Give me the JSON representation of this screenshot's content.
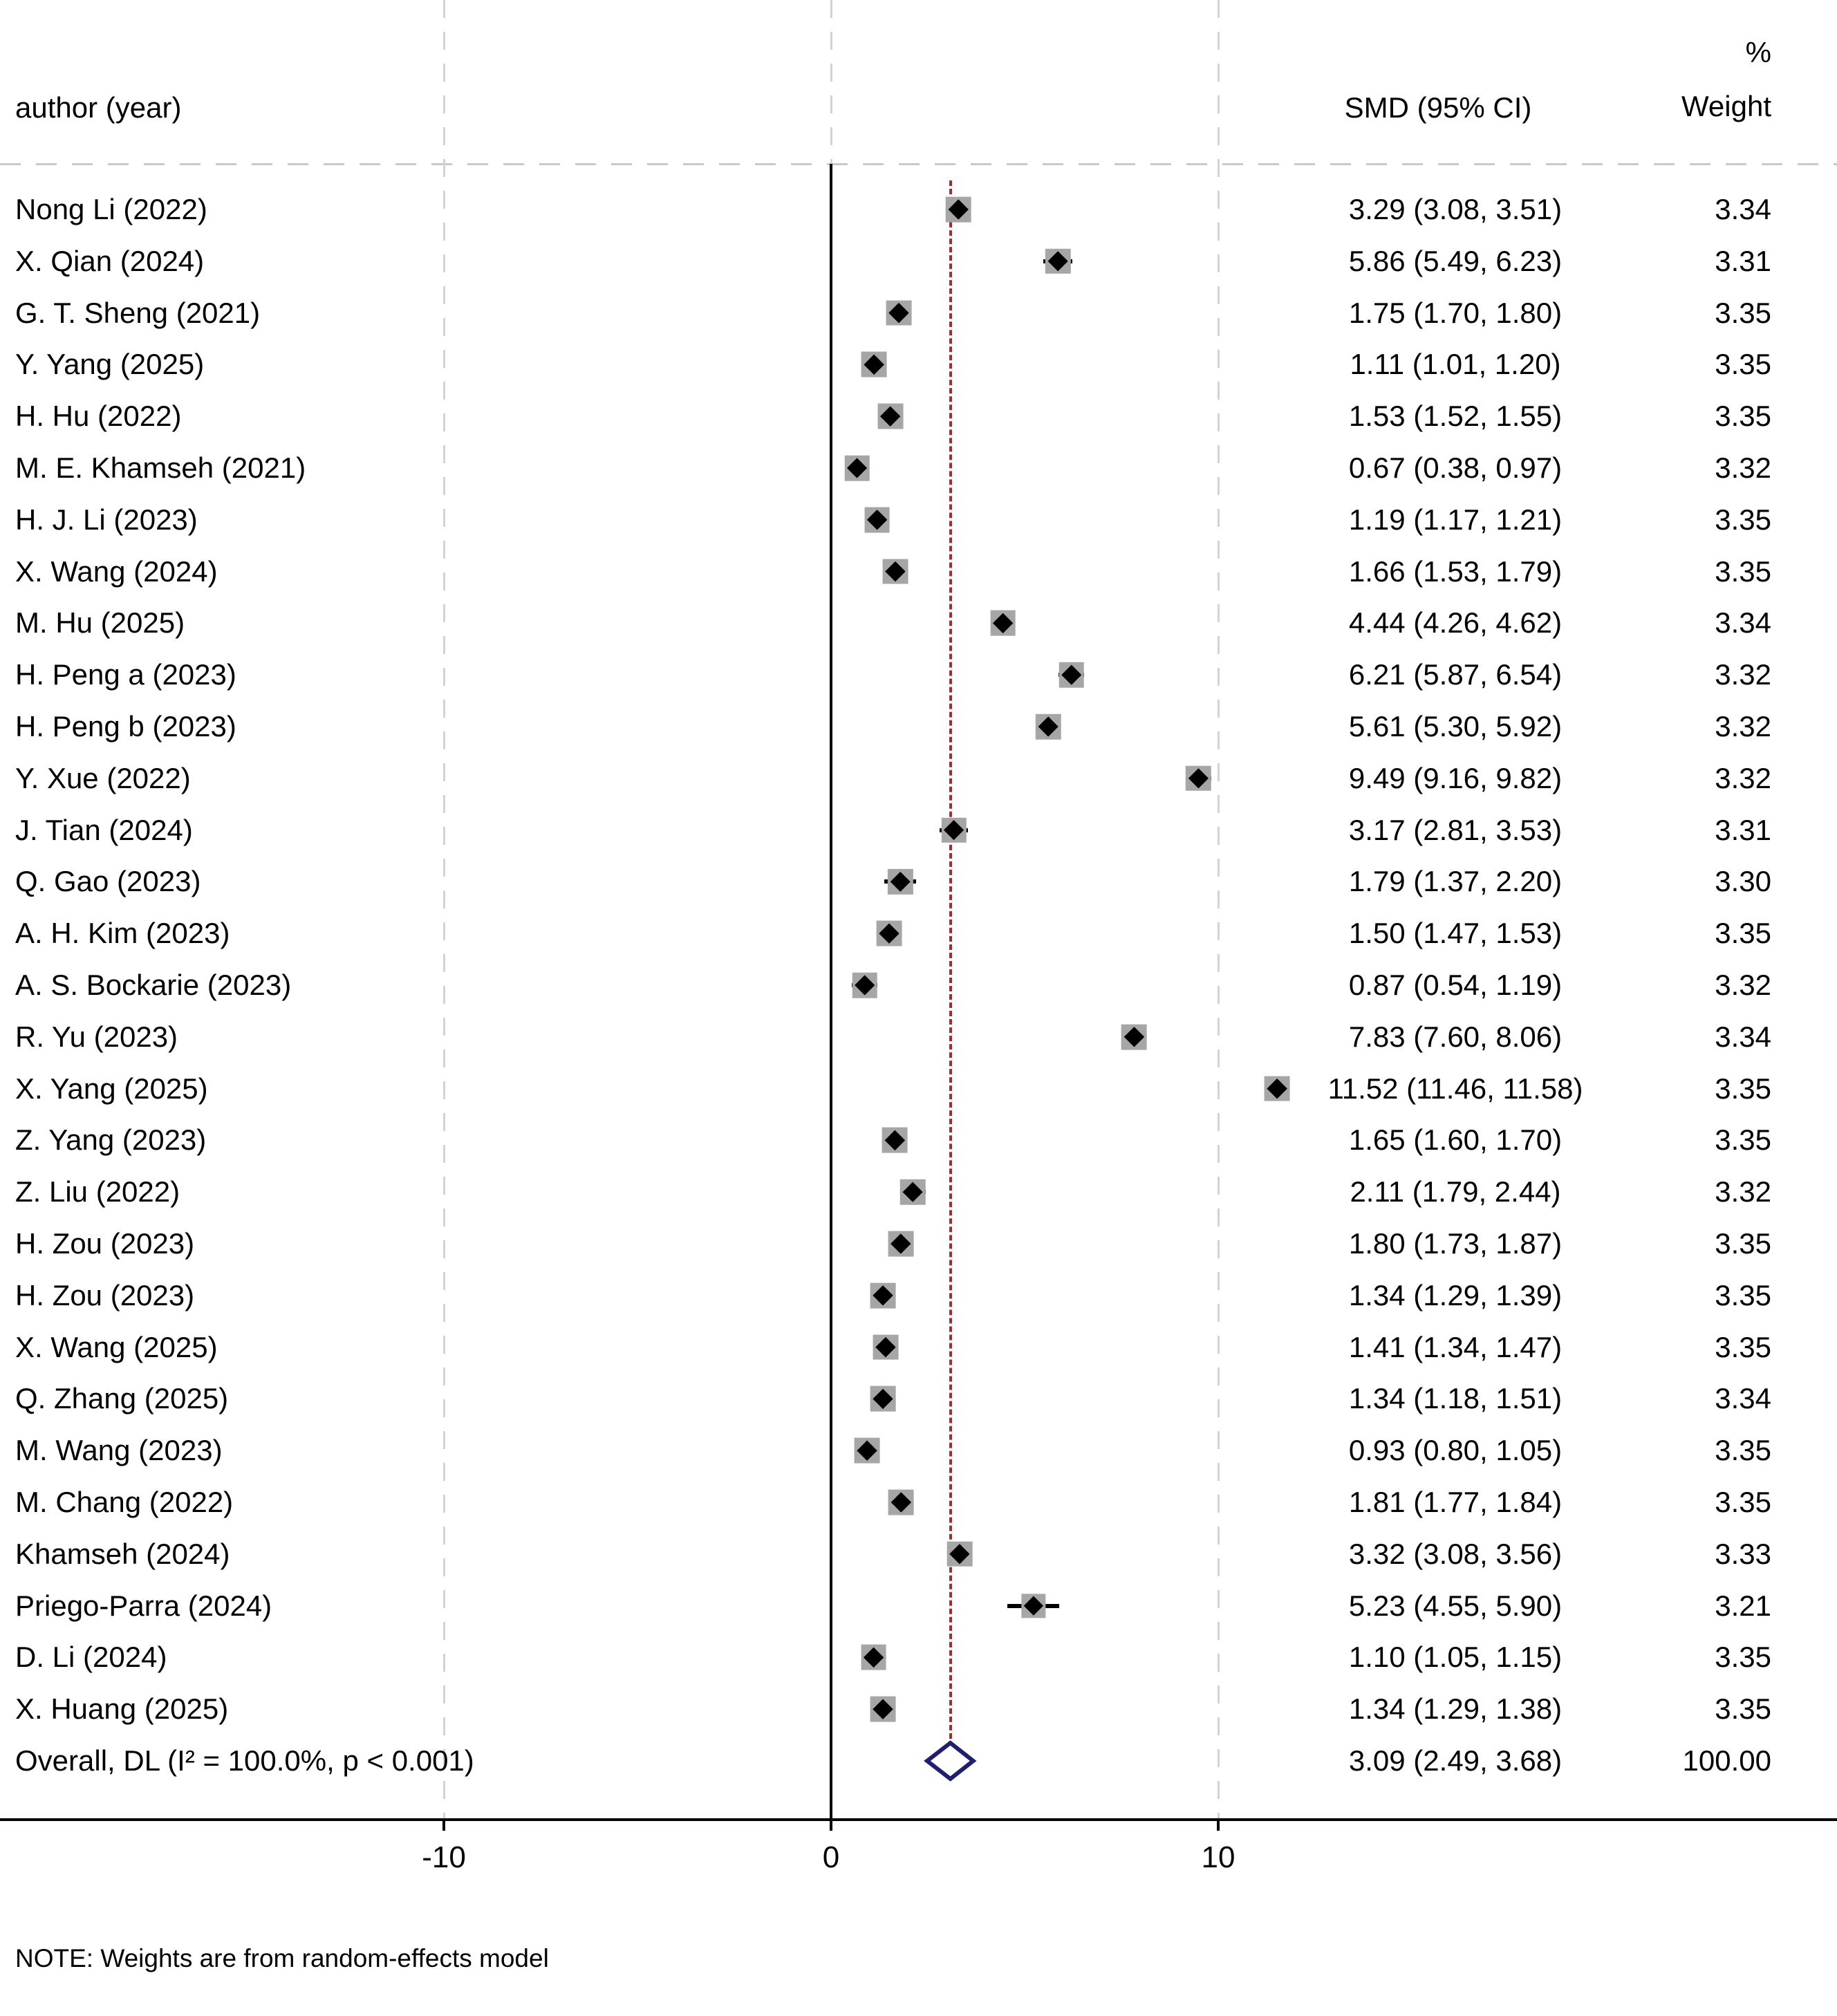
{
  "header": {
    "author": "author (year)",
    "smd": "SMD (95% CI)",
    "weight_pct": "%",
    "weight": "Weight"
  },
  "note": "NOTE: Weights are from random-effects model",
  "chart_data": {
    "type": "forest",
    "title": "",
    "x_axis": {
      "ticks": [
        -10,
        0,
        10
      ],
      "tick_labels": [
        "-10",
        "0",
        "10"
      ],
      "zero_line": 0,
      "reference_line": 3.09,
      "xlim": [
        -13,
        16
      ]
    },
    "colors": {
      "weight_box": "#a6a6a6",
      "marker": "#000000",
      "overall_diamond_stroke": "#1f1f6e",
      "reference_line": "#9c2f2f",
      "gridline": "#d2d2d2"
    },
    "studies": [
      {
        "author": "Nong Li (2022)",
        "value": 3.29,
        "lo": 3.08,
        "hi": 3.51,
        "smd_label": "3.29 (3.08, 3.51)",
        "weight": 3.34,
        "weight_label": "3.34"
      },
      {
        "author": "X. Qian (2024)",
        "value": 5.86,
        "lo": 5.49,
        "hi": 6.23,
        "smd_label": "5.86 (5.49, 6.23)",
        "weight": 3.31,
        "weight_label": "3.31"
      },
      {
        "author": "G. T. Sheng (2021)",
        "value": 1.75,
        "lo": 1.7,
        "hi": 1.8,
        "smd_label": "1.75 (1.70, 1.80)",
        "weight": 3.35,
        "weight_label": "3.35"
      },
      {
        "author": "Y. Yang (2025)",
        "value": 1.11,
        "lo": 1.01,
        "hi": 1.2,
        "smd_label": "1.11 (1.01, 1.20)",
        "weight": 3.35,
        "weight_label": "3.35"
      },
      {
        "author": "H. Hu (2022)",
        "value": 1.53,
        "lo": 1.52,
        "hi": 1.55,
        "smd_label": "1.53 (1.52, 1.55)",
        "weight": 3.35,
        "weight_label": "3.35"
      },
      {
        "author": "M. E. Khamseh (2021)",
        "value": 0.67,
        "lo": 0.38,
        "hi": 0.97,
        "smd_label": "0.67 (0.38, 0.97)",
        "weight": 3.32,
        "weight_label": "3.32"
      },
      {
        "author": "H. J. Li (2023)",
        "value": 1.19,
        "lo": 1.17,
        "hi": 1.21,
        "smd_label": "1.19 (1.17, 1.21)",
        "weight": 3.35,
        "weight_label": "3.35"
      },
      {
        "author": "X. Wang (2024)",
        "value": 1.66,
        "lo": 1.53,
        "hi": 1.79,
        "smd_label": "1.66 (1.53, 1.79)",
        "weight": 3.35,
        "weight_label": "3.35"
      },
      {
        "author": "M. Hu (2025)",
        "value": 4.44,
        "lo": 4.26,
        "hi": 4.62,
        "smd_label": "4.44 (4.26, 4.62)",
        "weight": 3.34,
        "weight_label": "3.34"
      },
      {
        "author": "H. Peng a (2023)",
        "value": 6.21,
        "lo": 5.87,
        "hi": 6.54,
        "smd_label": "6.21 (5.87, 6.54)",
        "weight": 3.32,
        "weight_label": "3.32"
      },
      {
        "author": "H. Peng b (2023)",
        "value": 5.61,
        "lo": 5.3,
        "hi": 5.92,
        "smd_label": "5.61 (5.30, 5.92)",
        "weight": 3.32,
        "weight_label": "3.32"
      },
      {
        "author": "Y. Xue (2022)",
        "value": 9.49,
        "lo": 9.16,
        "hi": 9.82,
        "smd_label": "9.49 (9.16, 9.82)",
        "weight": 3.32,
        "weight_label": "3.32"
      },
      {
        "author": "J. Tian (2024)",
        "value": 3.17,
        "lo": 2.81,
        "hi": 3.53,
        "smd_label": "3.17 (2.81, 3.53)",
        "weight": 3.31,
        "weight_label": "3.31"
      },
      {
        "author": "Q. Gao (2023)",
        "value": 1.79,
        "lo": 1.37,
        "hi": 2.2,
        "smd_label": "1.79 (1.37, 2.20)",
        "weight": 3.3,
        "weight_label": "3.30"
      },
      {
        "author": "A. H. Kim (2023)",
        "value": 1.5,
        "lo": 1.47,
        "hi": 1.53,
        "smd_label": "1.50 (1.47, 1.53)",
        "weight": 3.35,
        "weight_label": "3.35"
      },
      {
        "author": "A. S. Bockarie (2023)",
        "value": 0.87,
        "lo": 0.54,
        "hi": 1.19,
        "smd_label": "0.87 (0.54, 1.19)",
        "weight": 3.32,
        "weight_label": "3.32"
      },
      {
        "author": "R. Yu (2023)",
        "value": 7.83,
        "lo": 7.6,
        "hi": 8.06,
        "smd_label": "7.83 (7.60, 8.06)",
        "weight": 3.34,
        "weight_label": "3.34"
      },
      {
        "author": "X. Yang (2025)",
        "value": 11.52,
        "lo": 11.46,
        "hi": 11.58,
        "smd_label": "11.52 (11.46, 11.58)",
        "weight": 3.35,
        "weight_label": "3.35"
      },
      {
        "author": "Z. Yang (2023)",
        "value": 1.65,
        "lo": 1.6,
        "hi": 1.7,
        "smd_label": "1.65 (1.60, 1.70)",
        "weight": 3.35,
        "weight_label": "3.35"
      },
      {
        "author": "Z. Liu (2022)",
        "value": 2.11,
        "lo": 1.79,
        "hi": 2.44,
        "smd_label": "2.11 (1.79, 2.44)",
        "weight": 3.32,
        "weight_label": "3.32"
      },
      {
        "author": "H. Zou (2023)",
        "value": 1.8,
        "lo": 1.73,
        "hi": 1.87,
        "smd_label": "1.80 (1.73, 1.87)",
        "weight": 3.35,
        "weight_label": "3.35"
      },
      {
        "author": "H. Zou (2023)",
        "value": 1.34,
        "lo": 1.29,
        "hi": 1.39,
        "smd_label": "1.34 (1.29, 1.39)",
        "weight": 3.35,
        "weight_label": "3.35"
      },
      {
        "author": "X. Wang (2025)",
        "value": 1.41,
        "lo": 1.34,
        "hi": 1.47,
        "smd_label": "1.41 (1.34, 1.47)",
        "weight": 3.35,
        "weight_label": "3.35"
      },
      {
        "author": "Q. Zhang (2025)",
        "value": 1.34,
        "lo": 1.18,
        "hi": 1.51,
        "smd_label": "1.34 (1.18, 1.51)",
        "weight": 3.34,
        "weight_label": "3.34"
      },
      {
        "author": "M. Wang (2023)",
        "value": 0.93,
        "lo": 0.8,
        "hi": 1.05,
        "smd_label": "0.93 (0.80, 1.05)",
        "weight": 3.35,
        "weight_label": "3.35"
      },
      {
        "author": "M. Chang (2022)",
        "value": 1.81,
        "lo": 1.77,
        "hi": 1.84,
        "smd_label": "1.81 (1.77, 1.84)",
        "weight": 3.35,
        "weight_label": "3.35"
      },
      {
        "author": "Khamseh (2024)",
        "value": 3.32,
        "lo": 3.08,
        "hi": 3.56,
        "smd_label": "3.32 (3.08, 3.56)",
        "weight": 3.33,
        "weight_label": "3.33"
      },
      {
        "author": "Priego-Parra (2024)",
        "value": 5.23,
        "lo": 4.55,
        "hi": 5.9,
        "smd_label": "5.23 (4.55, 5.90)",
        "weight": 3.21,
        "weight_label": "3.21"
      },
      {
        "author": "D. Li (2024)",
        "value": 1.1,
        "lo": 1.05,
        "hi": 1.15,
        "smd_label": "1.10 (1.05, 1.15)",
        "weight": 3.35,
        "weight_label": "3.35"
      },
      {
        "author": "X. Huang (2025)",
        "value": 1.34,
        "lo": 1.29,
        "hi": 1.38,
        "smd_label": "1.34 (1.29, 1.38)",
        "weight": 3.35,
        "weight_label": "3.35"
      }
    ],
    "overall": {
      "author": "Overall, DL (I² = 100.0%, p < 0.001)",
      "value": 3.09,
      "lo": 2.49,
      "hi": 3.68,
      "smd_label": "3.09 (2.49, 3.68)",
      "weight_label": "100.00"
    }
  }
}
